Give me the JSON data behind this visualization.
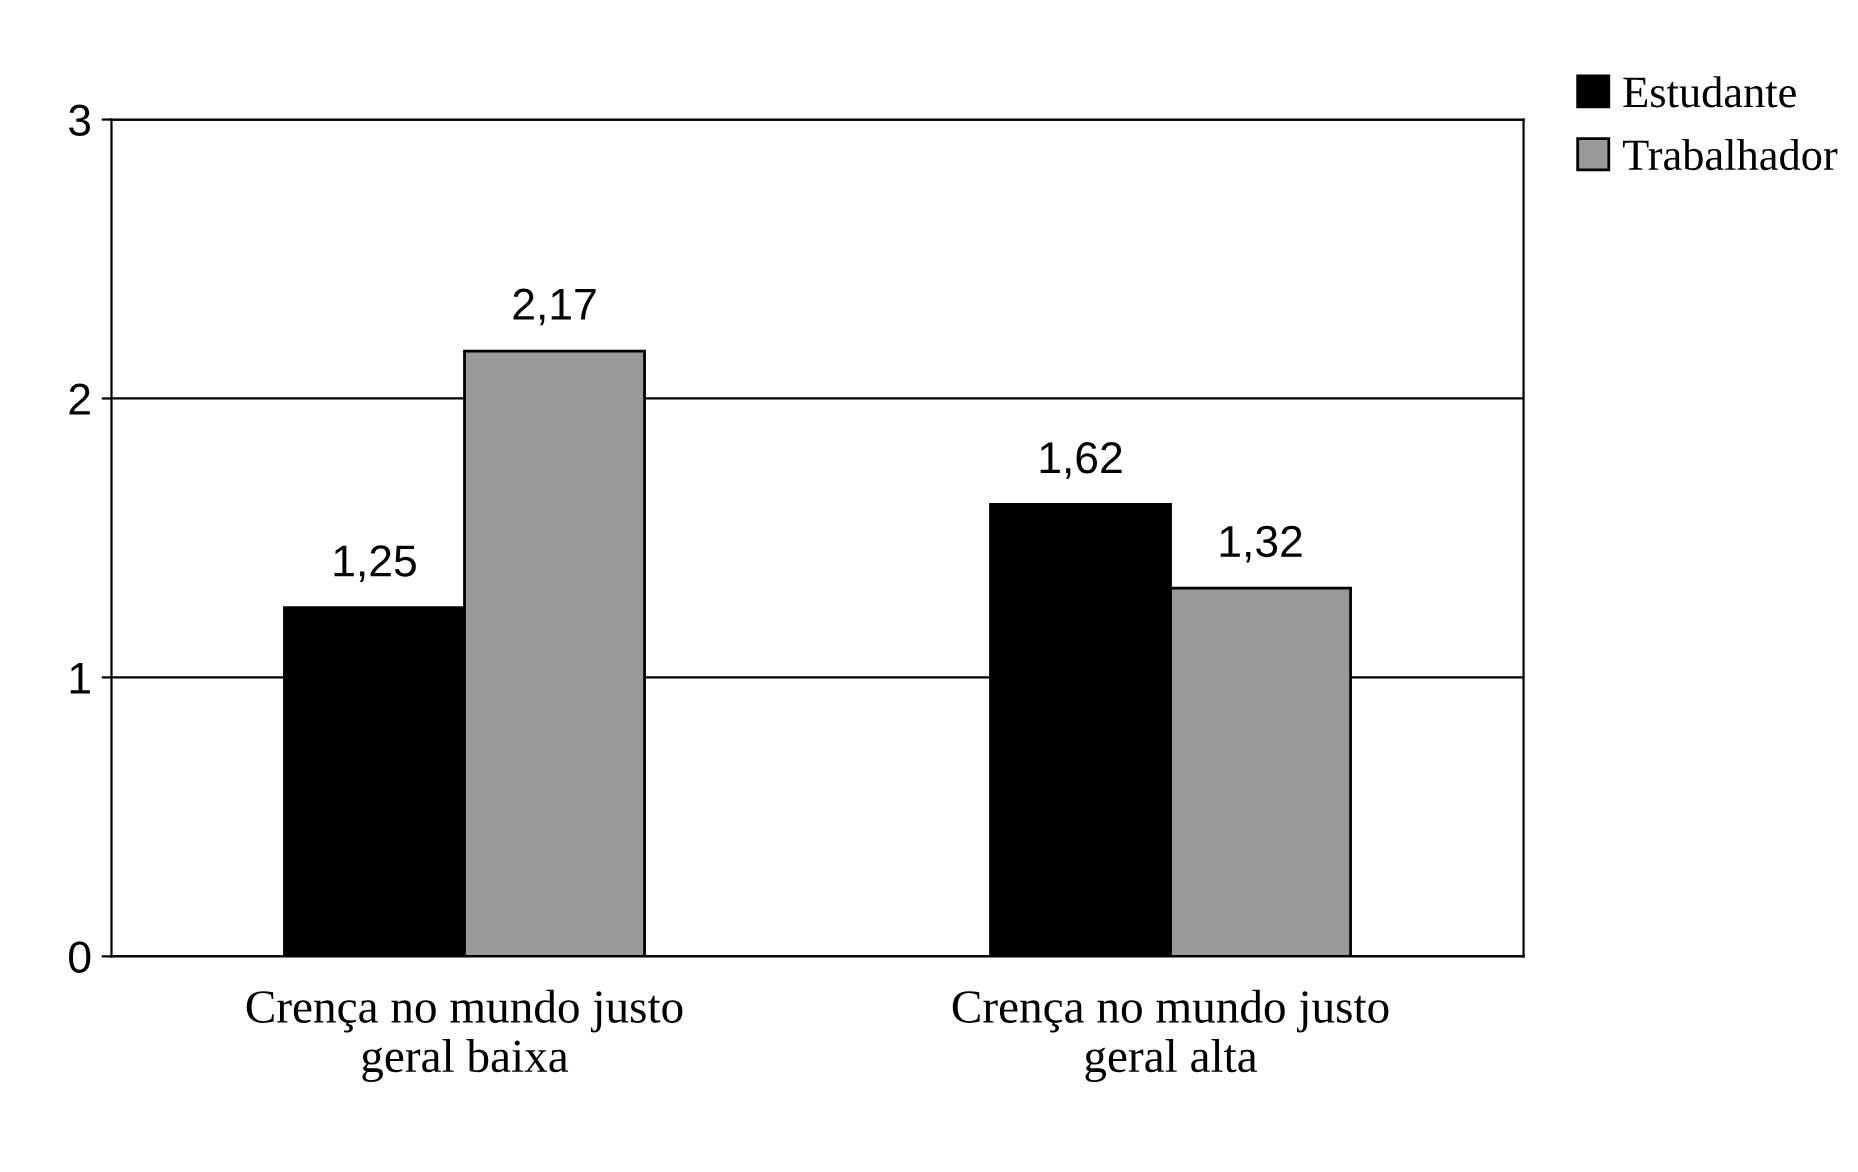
{
  "chart_data": {
    "type": "bar",
    "categories": [
      "Crença no mundo justo\ngeral baixa",
      "Crença no mundo justo\ngeral alta"
    ],
    "series": [
      {
        "name": "Estudante",
        "color": "#000000",
        "values": [
          1.25,
          1.62
        ],
        "value_labels": [
          "1,25",
          "1,62"
        ]
      },
      {
        "name": "Trabalhador",
        "color": "#999999",
        "values": [
          2.17,
          1.32
        ],
        "value_labels": [
          "2,17",
          "1,32"
        ]
      }
    ],
    "ylim": [
      0,
      3
    ],
    "yticks": [
      0,
      1,
      2,
      3
    ],
    "grid": "y",
    "legend": "top right"
  }
}
